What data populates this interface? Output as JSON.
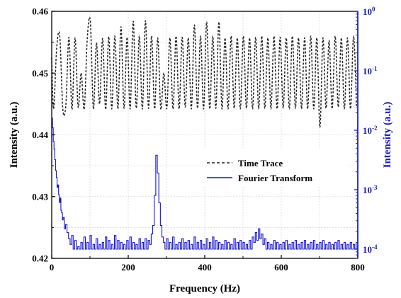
{
  "chart_data": {
    "type": "line",
    "title": "",
    "xlabel": "Frequency (Hz)",
    "ylabel_left": "Intensity (a.u.)",
    "ylabel_right": "Intensity (a.u.)",
    "xlim": [
      0,
      800
    ],
    "ylim_left": [
      0.42,
      0.46
    ],
    "ylim_right": [
      7e-05,
      1
    ],
    "right_axis_scale": "log",
    "grid": true,
    "legend_placement": "center-right",
    "x_ticks": [
      "0",
      "200",
      "400",
      "600",
      "800"
    ],
    "y_left_ticks": [
      "0.42",
      "0.43",
      "0.44",
      "0.45",
      "0.46"
    ],
    "y_right_ticks": [
      {
        "base": "10",
        "exp": "-4"
      },
      {
        "base": "10",
        "exp": "-3"
      },
      {
        "base": "10",
        "exp": "-2"
      },
      {
        "base": "10",
        "exp": "-1"
      },
      {
        "base": "10",
        "exp": "0"
      }
    ],
    "colors": {
      "time_trace": "#222222",
      "fourier": "#1515c8",
      "right_axis": "#1a1ab4",
      "grid": "#d9d9d9"
    },
    "series": [
      {
        "name": "Time Trace",
        "axis": "left",
        "style": "dashed",
        "x": [
          0,
          5,
          13,
          21,
          29,
          37,
          45,
          53,
          61,
          69,
          77,
          85,
          93,
          101,
          109,
          117,
          125,
          133,
          141,
          149,
          157,
          165,
          173,
          181,
          189,
          197,
          205,
          213,
          221,
          229,
          237,
          245,
          253,
          261,
          269,
          277,
          285,
          293,
          301,
          309,
          317,
          325,
          333,
          341,
          349,
          357,
          365,
          373,
          381,
          389,
          397,
          405,
          413,
          421,
          429,
          437,
          445,
          453,
          461,
          469,
          477,
          485,
          493,
          501,
          509,
          517,
          525,
          533,
          541,
          549,
          557,
          565,
          573,
          581,
          589,
          597,
          605,
          613,
          621,
          629,
          637,
          645,
          653,
          661,
          669,
          677,
          685,
          693,
          701,
          709,
          717,
          725,
          733,
          741,
          749,
          757,
          765,
          773,
          781,
          789,
          797
        ],
        "values": [
          0.4525,
          0.4442,
          0.4541,
          0.456,
          0.4442,
          0.4449,
          0.4558,
          0.4441,
          0.4557,
          0.4445,
          0.45,
          0.4442,
          0.4557,
          0.4583,
          0.4442,
          0.4549,
          0.445,
          0.4556,
          0.4441,
          0.4559,
          0.4442,
          0.456,
          0.4442,
          0.4575,
          0.4443,
          0.4558,
          0.4442,
          0.4584,
          0.4443,
          0.456,
          0.4442,
          0.4585,
          0.4443,
          0.456,
          0.4442,
          0.4557,
          0.4442,
          0.45,
          0.4443,
          0.4557,
          0.4442,
          0.456,
          0.4442,
          0.4558,
          0.4445,
          0.4557,
          0.4442,
          0.4578,
          0.4443,
          0.456,
          0.4442,
          0.4583,
          0.4442,
          0.456,
          0.4443,
          0.4583,
          0.4442,
          0.4557,
          0.4442,
          0.456,
          0.4443,
          0.4557,
          0.4442,
          0.456,
          0.4443,
          0.4557,
          0.4442,
          0.4558,
          0.4442,
          0.456,
          0.4443,
          0.4557,
          0.4442,
          0.456,
          0.4442,
          0.4558,
          0.4443,
          0.4557,
          0.4442,
          0.456,
          0.4443,
          0.4557,
          0.4442,
          0.4557,
          0.4442,
          0.456,
          0.4442,
          0.4557,
          0.4412,
          0.4557,
          0.4443,
          0.4553,
          0.4442,
          0.456,
          0.4445,
          0.4557,
          0.4442,
          0.4557,
          0.4442,
          0.456,
          0.4443
        ]
      },
      {
        "name": "Fourier Transform",
        "axis": "right",
        "style": "solid",
        "x": [
          0,
          2,
          4,
          6,
          8,
          10,
          12,
          14,
          16,
          18,
          20,
          22,
          24,
          26,
          28,
          30,
          33,
          36,
          40,
          44,
          48,
          52,
          56,
          60,
          64,
          68,
          72,
          76,
          80,
          84,
          88,
          92,
          96,
          100,
          104,
          108,
          112,
          116,
          120,
          124,
          128,
          132,
          136,
          140,
          144,
          148,
          152,
          156,
          160,
          164,
          168,
          172,
          176,
          180,
          184,
          188,
          192,
          196,
          200,
          204,
          208,
          212,
          216,
          220,
          224,
          228,
          232,
          236,
          240,
          244,
          248,
          252,
          256,
          260,
          264,
          268,
          272,
          276,
          280,
          284,
          288,
          292,
          296,
          300,
          304,
          308,
          312,
          316,
          320,
          324,
          328,
          332,
          336,
          340,
          344,
          348,
          352,
          356,
          360,
          364,
          368,
          372,
          376,
          380,
          384,
          388,
          392,
          396,
          400,
          404,
          408,
          412,
          416,
          420,
          424,
          428,
          432,
          436,
          440,
          444,
          448,
          452,
          456,
          460,
          464,
          468,
          472,
          476,
          480,
          484,
          488,
          492,
          496,
          500,
          504,
          508,
          512,
          516,
          520,
          524,
          528,
          532,
          536,
          540,
          544,
          548,
          552,
          556,
          560,
          564,
          568,
          572,
          576,
          580,
          584,
          588,
          592,
          596,
          600,
          604,
          608,
          612,
          616,
          620,
          624,
          628,
          632,
          636,
          640,
          644,
          648,
          652,
          656,
          660,
          664,
          668,
          672,
          676,
          680,
          684,
          688,
          692,
          696,
          700,
          704,
          708,
          712,
          716,
          720,
          724,
          728,
          732,
          736,
          740,
          744,
          748,
          752,
          756,
          760,
          764,
          768,
          772,
          776,
          780,
          784,
          788,
          792,
          796,
          800
        ],
        "values": [
          0.016,
          0.011,
          0.0065,
          0.0048,
          0.0032,
          0.0021,
          0.0016,
          0.0011,
          0.0012,
          0.00082,
          0.00061,
          0.00072,
          0.00045,
          0.00041,
          0.00031,
          0.00034,
          0.00022,
          0.00026,
          0.00019,
          0.00015,
          0.00012,
          0.00017,
          0.0001,
          0.00014,
          0.0001,
          0.00011,
          0.0001,
          0.00013,
          0.0001,
          0.00016,
          0.0001,
          0.00013,
          0.0001,
          0.00017,
          0.0001,
          0.00012,
          0.0001,
          0.00015,
          0.0001,
          0.00012,
          0.0001,
          0.00013,
          0.0001,
          0.00016,
          0.0001,
          0.00014,
          0.0001,
          0.00012,
          0.0001,
          0.00017,
          0.0001,
          0.00014,
          0.0001,
          0.00013,
          0.0001,
          0.00012,
          0.0001,
          0.00014,
          0.0001,
          0.00016,
          0.0001,
          0.00013,
          0.0001,
          0.00012,
          0.0001,
          0.00015,
          0.0001,
          0.00013,
          0.0001,
          0.00015,
          0.0001,
          0.00014,
          0.00012,
          0.00018,
          0.00025,
          0.0008,
          0.0038,
          0.0019,
          0.0006,
          0.00025,
          0.00016,
          0.00013,
          0.0001,
          0.00015,
          0.0001,
          0.00013,
          0.0001,
          0.00016,
          0.0001,
          0.00012,
          0.0001,
          0.00013,
          0.0001,
          0.00015,
          0.0001,
          0.00013,
          0.0001,
          0.00014,
          0.0001,
          0.00012,
          0.0001,
          0.00016,
          0.0001,
          0.00013,
          0.0001,
          0.00014,
          0.0001,
          0.00012,
          0.0001,
          0.00015,
          0.0001,
          0.00013,
          0.0001,
          0.00016,
          0.0001,
          0.00014,
          0.0001,
          0.00013,
          0.0001,
          0.00012,
          0.0001,
          0.00014,
          0.0001,
          0.00013,
          0.0001,
          0.00012,
          0.0001,
          0.00015,
          0.0001,
          0.00013,
          0.0001,
          0.00014,
          0.0001,
          0.00013,
          0.0001,
          0.00012,
          0.0001,
          0.00014,
          0.0001,
          0.00016,
          0.00013,
          0.00019,
          0.00014,
          0.00022,
          0.00015,
          0.00018,
          0.00012,
          0.00015,
          0.0001,
          0.00013,
          0.0001,
          0.00012,
          0.0001,
          0.00014,
          0.0001,
          0.00013,
          0.0001,
          0.00012,
          0.0001,
          0.00013,
          0.0001,
          0.00014,
          0.0001,
          0.00012,
          0.0001,
          0.00013,
          0.0001,
          0.00014,
          0.0001,
          0.00012,
          0.0001,
          0.00013,
          0.0001,
          0.00014,
          0.0001,
          0.00012,
          0.0001,
          0.00013,
          0.0001,
          0.00014,
          0.0001,
          0.00012,
          0.0001,
          0.00013,
          0.0001,
          0.00014,
          0.0001,
          0.00012,
          0.0001,
          0.00013,
          0.0001,
          0.00012,
          0.0001,
          0.00013,
          0.0001,
          0.00014,
          0.0001,
          0.00012,
          0.0001,
          0.00013,
          0.0001,
          0.00012,
          0.0001,
          0.00013,
          0.0001,
          0.00012,
          0.0001,
          0.00013,
          0.0001
        ]
      }
    ]
  }
}
